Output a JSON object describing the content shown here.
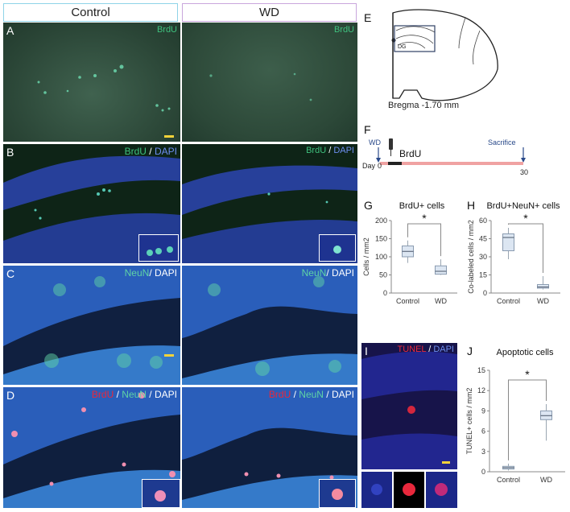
{
  "headers": {
    "control": "Control",
    "wd": "WD"
  },
  "panel_letters": {
    "A": "A",
    "B": "B",
    "C": "C",
    "D": "D",
    "E": "E",
    "F": "F",
    "G": "G",
    "H": "H",
    "I": "I",
    "J": "J"
  },
  "stains": {
    "a_control": "BrdU",
    "a_wd": "BrdU",
    "b_brdu": "BrdU",
    "b_sep": " / ",
    "b_dapi": "DAPI",
    "c_neun": "NeuN",
    "c_sep": "/ ",
    "c_dapi": "DAPI",
    "d_brdu": "BrdU",
    "d_sep1": " / ",
    "d_neun": "NeuN",
    "d_sep2": " / ",
    "d_dapi": "DAPI",
    "i_tunel": "TUNEL",
    "i_sep": " / ",
    "i_dapi": "DAPI"
  },
  "colors": {
    "brdu": "#3fc17e",
    "dapi": "#4a6fe0",
    "neun": "#5fd3a6",
    "tunel": "#e8283c",
    "header_control_border": "#8fd3e8",
    "header_wd_border": "#c9a6dc",
    "timeline": "#f0a2a2"
  },
  "brain": {
    "region": "DG",
    "bregma": "Bregma -1.70 mm"
  },
  "timeline": {
    "wd_label": "WD",
    "brdu_label": "BrdU",
    "sacrifice_label": "Sacrifice",
    "day_label": "Day",
    "day_start": "0",
    "day_end": "30"
  },
  "chart_data": [
    {
      "panel": "G",
      "type": "box",
      "title": "BrdU+ cells",
      "ylabel": "Cells / mm2",
      "categories": [
        "Control",
        "WD"
      ],
      "ylim": [
        0,
        200
      ],
      "yticks": [
        0,
        50,
        100,
        150,
        200
      ],
      "boxes": [
        {
          "min": 83,
          "q1": 100,
          "median": 115,
          "q3": 130,
          "max": 145
        },
        {
          "min": 50,
          "q1": 52,
          "median": 60,
          "q3": 75,
          "max": 93
        }
      ],
      "significance": "*"
    },
    {
      "panel": "H",
      "type": "box",
      "title": "BrdU+NeuN+ cells",
      "ylabel": "Co-labeled cells / mm2",
      "categories": [
        "Control",
        "WD"
      ],
      "ylim": [
        0,
        60
      ],
      "yticks": [
        0,
        15,
        30,
        45,
        60
      ],
      "boxes": [
        {
          "min": 28,
          "q1": 35,
          "median": 46,
          "q3": 49,
          "max": 54
        },
        {
          "min": 3,
          "q1": 4,
          "median": 5,
          "q3": 7,
          "max": 14
        }
      ],
      "significance": "*"
    },
    {
      "panel": "J",
      "type": "box",
      "title": "Apoptotic cells",
      "ylabel": "TUNEL+ cells / mm2",
      "categories": [
        "Control",
        "WD"
      ],
      "ylim": [
        0,
        15
      ],
      "yticks": [
        0,
        3,
        6,
        9,
        12,
        15
      ],
      "boxes": [
        {
          "min": 0.2,
          "q1": 0.4,
          "median": 0.6,
          "q3": 0.8,
          "max": 1.2
        },
        {
          "min": 4.6,
          "q1": 7.7,
          "median": 8.3,
          "q3": 9.0,
          "max": 10.0
        }
      ],
      "significance": "*"
    }
  ]
}
